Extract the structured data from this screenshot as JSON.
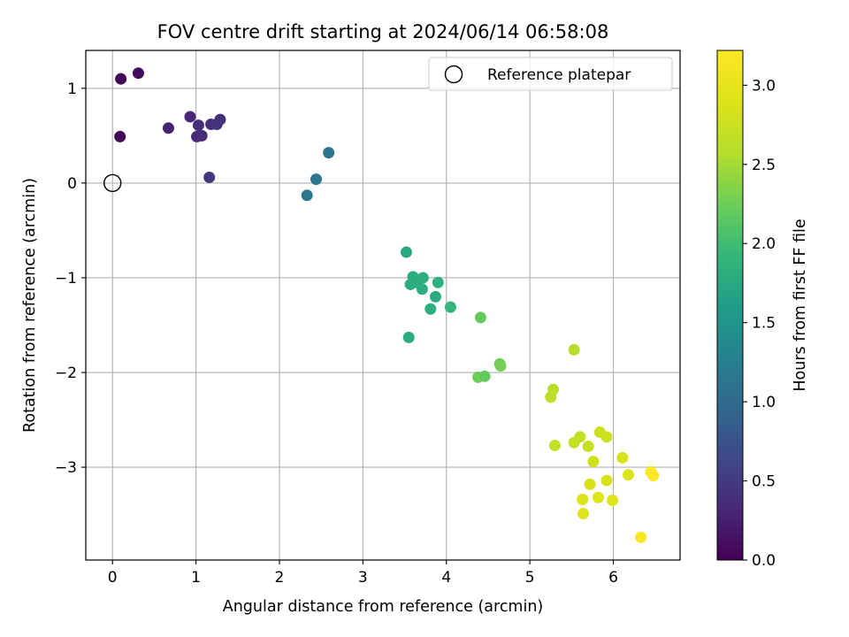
{
  "chart_data": {
    "type": "scatter",
    "title": "FOV centre drift starting at 2024/06/14 06:58:08",
    "xlabel": "Angular distance from reference (arcmin)",
    "ylabel": "Rotation from reference (arcmin)",
    "xlim": [
      -0.32,
      6.8
    ],
    "ylim": [
      -3.98,
      1.4
    ],
    "xticks": [
      0,
      1,
      2,
      3,
      4,
      5,
      6
    ],
    "yticks": [
      1,
      0,
      -1,
      -2,
      -3
    ],
    "xtick_labels": [
      "0",
      "1",
      "2",
      "3",
      "4",
      "5",
      "6"
    ],
    "ytick_labels": [
      "1",
      "0",
      "−1",
      "−2",
      "−3"
    ],
    "grid": true,
    "legend": {
      "placement": "top-right",
      "entries": [
        "Reference platepar"
      ]
    },
    "colorbar": {
      "label": "Hours from first FF file",
      "colormap": "viridis",
      "min": 0.0,
      "max": 3.22,
      "ticks": [
        0.0,
        0.5,
        1.0,
        1.5,
        2.0,
        2.5,
        3.0
      ],
      "tick_labels": [
        "0.0",
        "0.5",
        "1.0",
        "1.5",
        "2.0",
        "2.5",
        "3.0"
      ]
    },
    "reference_point": {
      "x": 0,
      "y": 0,
      "label": "Reference platepar"
    },
    "points": [
      {
        "x": 0.1,
        "y": 1.1,
        "c": 0.03
      },
      {
        "x": 0.31,
        "y": 1.16,
        "c": 0.08
      },
      {
        "x": 0.09,
        "y": 0.49,
        "c": 0.03
      },
      {
        "x": 0.67,
        "y": 0.58,
        "c": 0.28
      },
      {
        "x": 0.93,
        "y": 0.7,
        "c": 0.3
      },
      {
        "x": 1.03,
        "y": 0.61,
        "c": 0.38
      },
      {
        "x": 1.01,
        "y": 0.49,
        "c": 0.33
      },
      {
        "x": 1.07,
        "y": 0.5,
        "c": 0.36
      },
      {
        "x": 1.18,
        "y": 0.62,
        "c": 0.4
      },
      {
        "x": 1.25,
        "y": 0.62,
        "c": 0.43
      },
      {
        "x": 1.29,
        "y": 0.67,
        "c": 0.42
      },
      {
        "x": 1.16,
        "y": 0.06,
        "c": 0.46
      },
      {
        "x": 2.33,
        "y": -0.13,
        "c": 1.15
      },
      {
        "x": 2.44,
        "y": 0.04,
        "c": 1.15
      },
      {
        "x": 2.59,
        "y": 0.32,
        "c": 1.1
      },
      {
        "x": 3.52,
        "y": -0.73,
        "c": 1.75
      },
      {
        "x": 3.6,
        "y": -0.99,
        "c": 1.78
      },
      {
        "x": 3.57,
        "y": -1.07,
        "c": 1.8
      },
      {
        "x": 3.65,
        "y": -1.05,
        "c": 1.8
      },
      {
        "x": 3.72,
        "y": -1.0,
        "c": 1.82
      },
      {
        "x": 3.71,
        "y": -1.12,
        "c": 1.82
      },
      {
        "x": 3.9,
        "y": -1.05,
        "c": 1.85
      },
      {
        "x": 3.87,
        "y": -1.2,
        "c": 1.8
      },
      {
        "x": 3.81,
        "y": -1.33,
        "c": 1.82
      },
      {
        "x": 4.05,
        "y": -1.31,
        "c": 1.9
      },
      {
        "x": 3.55,
        "y": -1.63,
        "c": 1.8
      },
      {
        "x": 4.41,
        "y": -1.42,
        "c": 2.2
      },
      {
        "x": 4.64,
        "y": -1.91,
        "c": 2.25
      },
      {
        "x": 4.65,
        "y": -1.93,
        "c": 2.28
      },
      {
        "x": 4.38,
        "y": -2.05,
        "c": 2.25
      },
      {
        "x": 4.46,
        "y": -2.04,
        "c": 2.2
      },
      {
        "x": 5.53,
        "y": -1.76,
        "c": 2.58
      },
      {
        "x": 5.28,
        "y": -2.18,
        "c": 2.62
      },
      {
        "x": 5.25,
        "y": -2.26,
        "c": 2.65
      },
      {
        "x": 5.3,
        "y": -2.77,
        "c": 2.68
      },
      {
        "x": 5.53,
        "y": -2.74,
        "c": 2.68
      },
      {
        "x": 5.6,
        "y": -2.68,
        "c": 2.7
      },
      {
        "x": 5.7,
        "y": -2.78,
        "c": 2.72
      },
      {
        "x": 5.84,
        "y": -2.63,
        "c": 2.75
      },
      {
        "x": 5.92,
        "y": -2.68,
        "c": 2.78
      },
      {
        "x": 5.76,
        "y": -2.94,
        "c": 2.78
      },
      {
        "x": 6.11,
        "y": -2.9,
        "c": 2.85
      },
      {
        "x": 6.18,
        "y": -3.08,
        "c": 2.88
      },
      {
        "x": 5.92,
        "y": -3.14,
        "c": 2.85
      },
      {
        "x": 5.72,
        "y": -3.18,
        "c": 2.85
      },
      {
        "x": 5.63,
        "y": -3.34,
        "c": 2.9
      },
      {
        "x": 5.82,
        "y": -3.32,
        "c": 2.92
      },
      {
        "x": 5.99,
        "y": -3.35,
        "c": 2.92
      },
      {
        "x": 5.64,
        "y": -3.49,
        "c": 2.92
      },
      {
        "x": 6.45,
        "y": -3.05,
        "c": 3.2
      },
      {
        "x": 6.48,
        "y": -3.09,
        "c": 3.2
      },
      {
        "x": 6.33,
        "y": -3.74,
        "c": 3.18
      }
    ]
  }
}
